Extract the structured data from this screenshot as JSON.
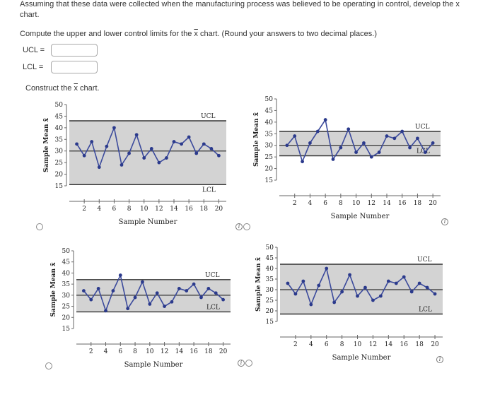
{
  "question": {
    "line1": "Assuming that these data were collected when the manufacturing process was believed to be operating in control, develop the x",
    "line2": "chart.",
    "compute_prefix": "Compute the upper and lower control limits for the ",
    "compute_x": "x",
    "compute_suffix": " chart. (Round your answers to two decimal places.)",
    "construct_prefix": "Construct the ",
    "construct_x": "x",
    "construct_suffix": " chart."
  },
  "inputs": {
    "ucl_label": "UCL  =",
    "ucl_value": "",
    "lcl_label": "LCL  =",
    "lcl_value": ""
  },
  "icons": {
    "radio": "radio-button-icon",
    "info": "info-icon",
    "info_glyph": "i"
  },
  "chart_data": [
    {
      "type": "line",
      "option": "A",
      "xlabel": "Sample Number",
      "ylabel": "Sample Mean x̄",
      "ylim": [
        15,
        50
      ],
      "yticks": [
        "15",
        "20",
        "25",
        "30",
        "35",
        "40",
        "45",
        "50"
      ],
      "xlim": [
        0,
        21
      ],
      "xticks": [
        "2",
        "4",
        "6",
        "8",
        "10",
        "12",
        "14",
        "16",
        "18",
        "20"
      ],
      "ucl": 43,
      "lcl": 15.5,
      "center": 30,
      "ucl_label": "UCL",
      "lcl_label": "LCL",
      "x": [
        1,
        2,
        3,
        4,
        5,
        6,
        7,
        8,
        9,
        10,
        11,
        12,
        13,
        14,
        15,
        16,
        17,
        18,
        19,
        20
      ],
      "values": [
        33,
        28,
        34,
        23,
        32,
        40,
        24,
        29,
        37,
        27,
        31,
        25,
        27,
        34,
        33,
        36,
        29,
        33,
        31,
        28
      ]
    },
    {
      "type": "line",
      "option": "B",
      "xlabel": "Sample Number",
      "ylabel": "Sample Mean x̄",
      "ylim": [
        15,
        50
      ],
      "yticks": [
        "15",
        "20",
        "25",
        "30",
        "35",
        "40",
        "45",
        "50"
      ],
      "xlim": [
        0,
        21
      ],
      "xticks": [
        "2",
        "4",
        "6",
        "8",
        "10",
        "12",
        "14",
        "16",
        "18",
        "20"
      ],
      "ucl": 36,
      "lcl": 25.5,
      "center": 30,
      "ucl_label": "UCL",
      "lcl_label": "LCL",
      "x": [
        1,
        2,
        3,
        4,
        5,
        6,
        7,
        8,
        9,
        10,
        11,
        12,
        13,
        14,
        15,
        16,
        17,
        18,
        19,
        20
      ],
      "values": [
        30,
        34,
        23,
        31,
        36,
        41,
        24,
        29,
        37,
        27,
        31,
        25,
        27,
        34,
        33,
        36,
        29,
        33,
        27,
        31
      ]
    },
    {
      "type": "line",
      "option": "C",
      "xlabel": "Sample Number",
      "ylabel": "Sample Mean x̄",
      "ylim": [
        15,
        50
      ],
      "yticks": [
        "15",
        "20",
        "25",
        "30",
        "35",
        "40",
        "45",
        "50"
      ],
      "xlim": [
        0,
        21
      ],
      "xticks": [
        "2",
        "4",
        "6",
        "8",
        "10",
        "12",
        "14",
        "16",
        "18",
        "20"
      ],
      "ucl": 37,
      "lcl": 22.5,
      "center": 30,
      "ucl_label": "UCL",
      "lcl_label": "LCL",
      "x": [
        1,
        2,
        3,
        4,
        5,
        6,
        7,
        8,
        9,
        10,
        11,
        12,
        13,
        14,
        15,
        16,
        17,
        18,
        19,
        20
      ],
      "values": [
        32,
        28,
        33,
        23,
        32,
        39,
        24,
        29,
        36,
        26,
        31,
        25,
        27,
        33,
        32,
        35,
        29,
        33,
        31,
        28
      ]
    },
    {
      "type": "line",
      "option": "D",
      "xlabel": "Sample Number",
      "ylabel": "Sample Mean x̄",
      "ylim": [
        15,
        50
      ],
      "yticks": [
        "15",
        "20",
        "25",
        "30",
        "35",
        "40",
        "45",
        "50"
      ],
      "xlim": [
        0,
        21
      ],
      "xticks": [
        "2",
        "4",
        "6",
        "8",
        "10",
        "12",
        "14",
        "16",
        "18",
        "20"
      ],
      "ucl": 42,
      "lcl": 18.5,
      "center": 30,
      "ucl_label": "UCL",
      "lcl_label": "LCL",
      "x": [
        1,
        2,
        3,
        4,
        5,
        6,
        7,
        8,
        9,
        10,
        11,
        12,
        13,
        14,
        15,
        16,
        17,
        18,
        19,
        20
      ],
      "values": [
        33,
        28,
        34,
        23,
        32,
        40,
        24,
        29,
        37,
        27,
        31,
        25,
        27,
        34,
        33,
        36,
        29,
        33,
        31,
        28
      ]
    }
  ]
}
